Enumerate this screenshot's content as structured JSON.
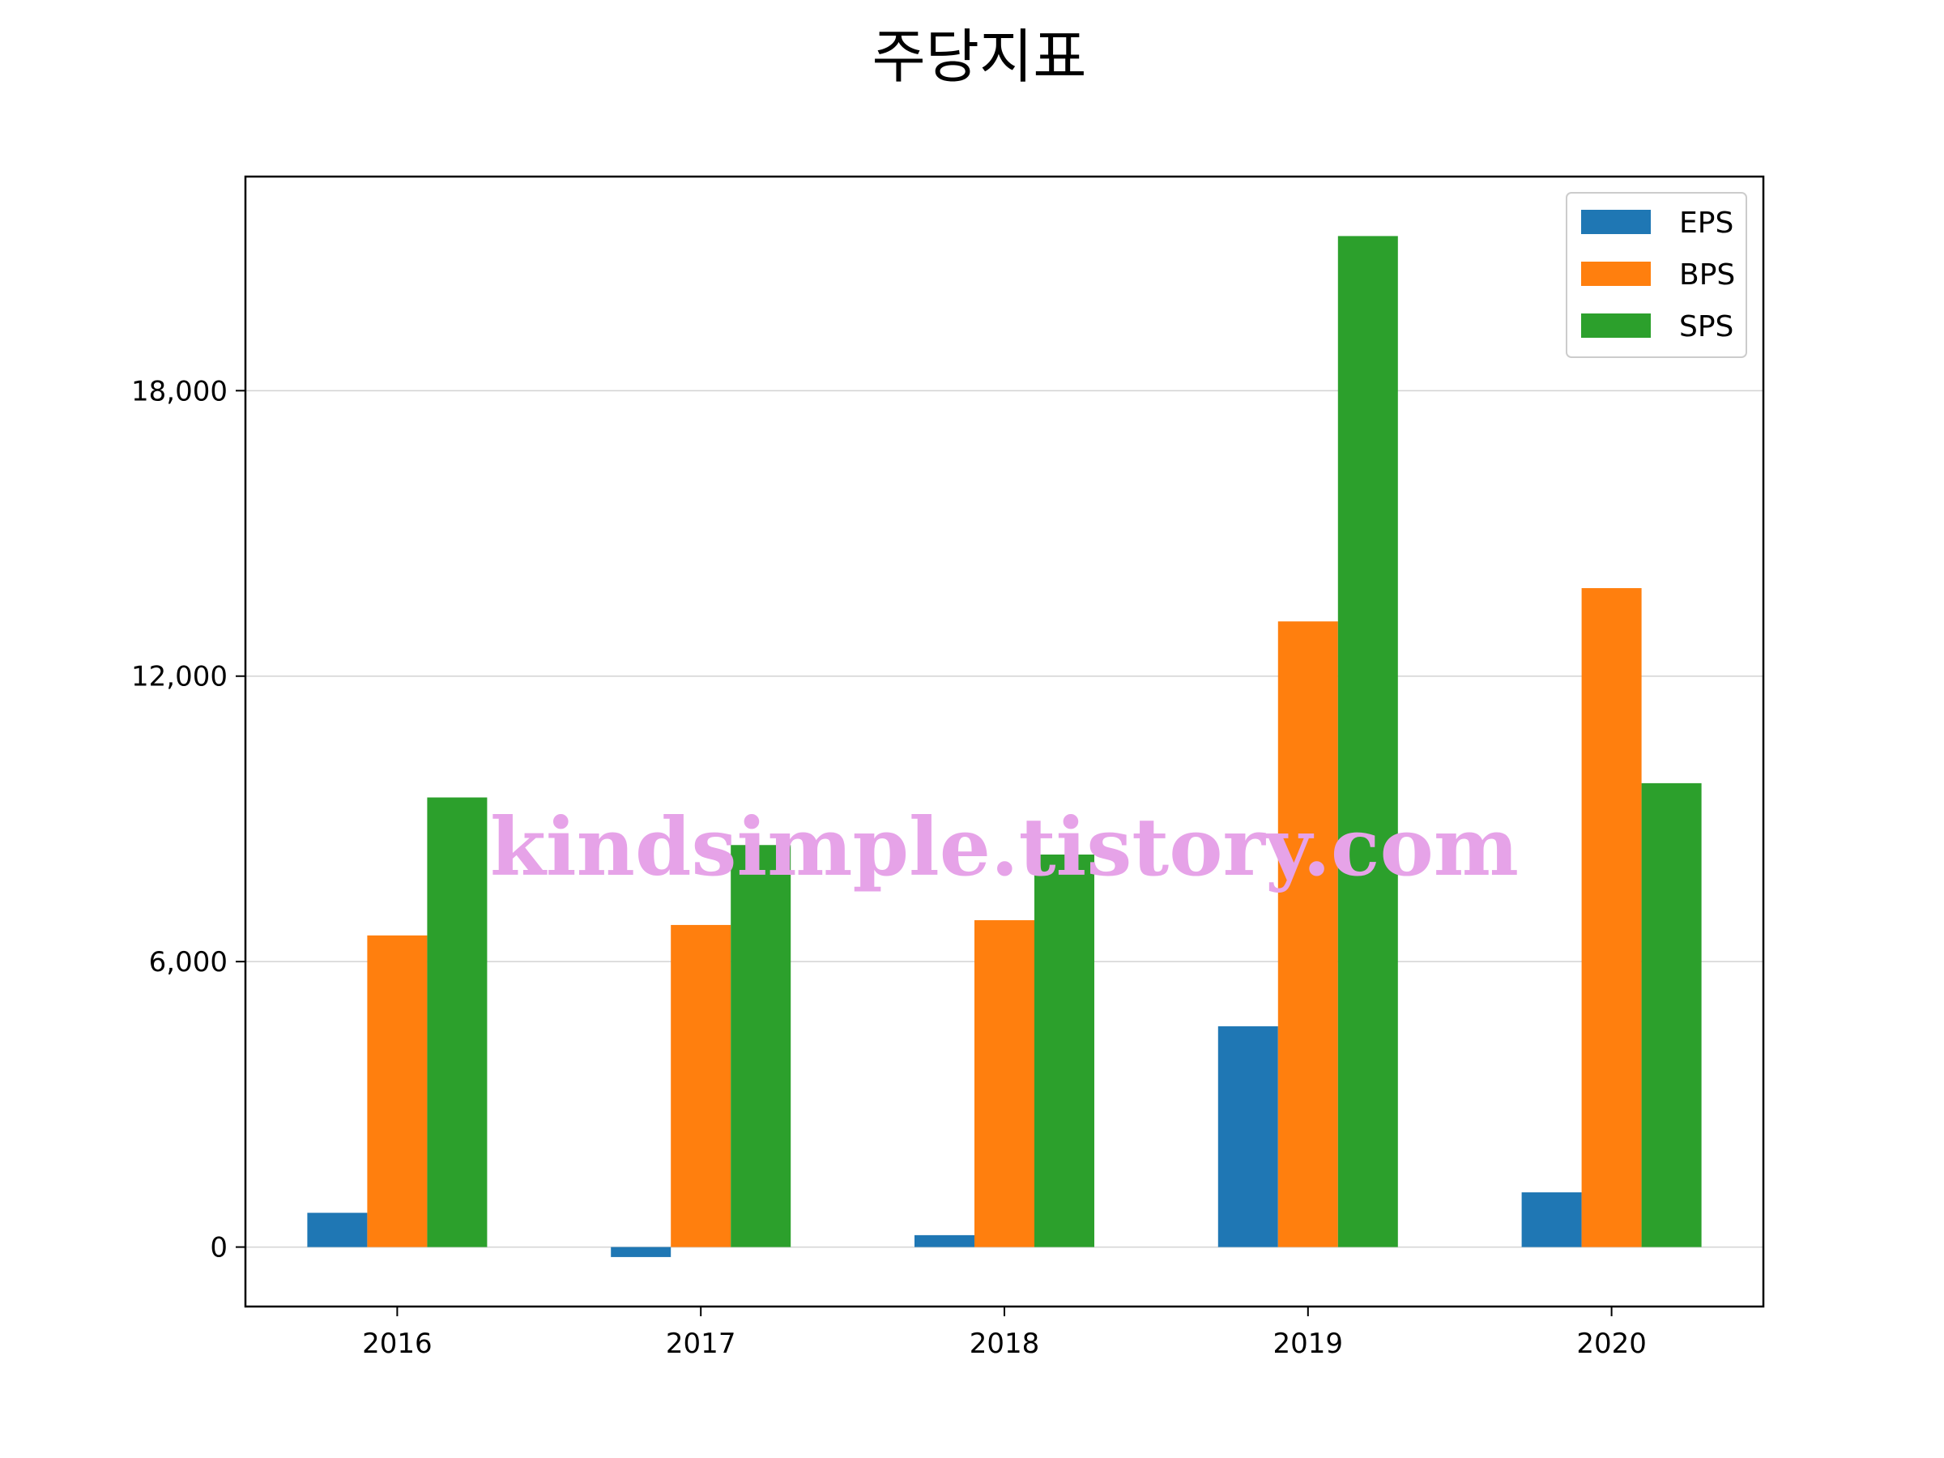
{
  "chart_data": {
    "type": "bar",
    "title": "주당지표",
    "categories": [
      "2016",
      "2017",
      "2018",
      "2019",
      "2020"
    ],
    "series": [
      {
        "name": "EPS",
        "color": "#1f77b4",
        "values": [
          720,
          -210,
          250,
          4640,
          1150
        ]
      },
      {
        "name": "BPS",
        "color": "#ff7f0e",
        "values": [
          6550,
          6770,
          6870,
          13150,
          13850
        ]
      },
      {
        "name": "SPS",
        "color": "#2ca02c",
        "values": [
          9450,
          8450,
          8250,
          21250,
          9750
        ]
      }
    ],
    "ylim": [
      -1250,
      22500
    ],
    "yticks": [
      0,
      6000,
      12000,
      18000
    ],
    "ytick_labels": [
      "0",
      "6,000",
      "12,000",
      "18,000"
    ],
    "grid": "y",
    "legend_position": "top-right",
    "xlabel": "",
    "ylabel": ""
  },
  "watermark": "kindsimple.tistory.com"
}
